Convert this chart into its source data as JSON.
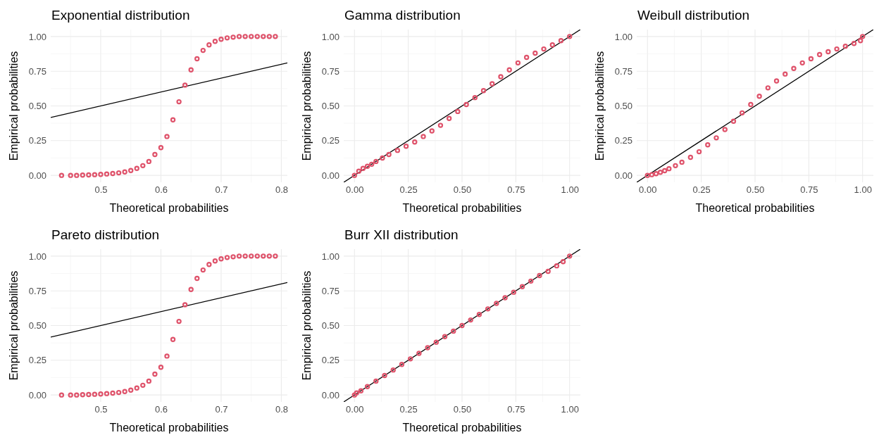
{
  "chart_data": [
    {
      "type": "scatter",
      "title": "Exponential distribution",
      "xlabel": "Theoretical probabilities",
      "ylabel": "Empirical probabilities",
      "xlim": [
        0.417,
        0.81
      ],
      "ylim": [
        -0.05,
        1.05
      ],
      "xticks": [
        0.5,
        0.6,
        0.7,
        0.8
      ],
      "yticks": [
        {
          "value": 0,
          "label": "0.00"
        },
        {
          "value": 0.25,
          "label": "0.25"
        },
        {
          "value": 0.5,
          "label": "0.50"
        },
        {
          "value": 0.75,
          "label": "0.75"
        },
        {
          "value": 1,
          "label": "1.00"
        }
      ],
      "grid": true,
      "series": [
        {
          "marker": "circle",
          "color": "#df536b",
          "x": [
            0.435,
            0.45,
            0.46,
            0.47,
            0.48,
            0.49,
            0.5,
            0.51,
            0.52,
            0.53,
            0.54,
            0.55,
            0.56,
            0.57,
            0.58,
            0.59,
            0.6,
            0.61,
            0.62,
            0.63,
            0.64,
            0.65,
            0.66,
            0.67,
            0.68,
            0.69,
            0.7,
            0.71,
            0.72,
            0.73,
            0.74,
            0.75,
            0.76,
            0.77,
            0.78,
            0.79
          ],
          "values": [
            0,
            0,
            0,
            0.002,
            0.003,
            0.005,
            0.007,
            0.01,
            0.013,
            0.018,
            0.025,
            0.035,
            0.05,
            0.07,
            0.1,
            0.15,
            0.2,
            0.28,
            0.4,
            0.53,
            0.65,
            0.76,
            0.84,
            0.9,
            0.94,
            0.965,
            0.98,
            0.99,
            0.995,
            1,
            1,
            1,
            1,
            1,
            1,
            1
          ]
        },
        {
          "type": "line",
          "color": "#000000",
          "x": [
            0.417,
            0.81
          ],
          "values": [
            0.417,
            0.81
          ]
        }
      ]
    },
    {
      "type": "scatter",
      "title": "Gamma distribution",
      "xlabel": "Theoretical probabilities",
      "ylabel": "Empirical probabilities",
      "xlim": [
        -0.05,
        1.05
      ],
      "ylim": [
        -0.05,
        1.05
      ],
      "xticks": [
        {
          "value": 0,
          "label": "0.00"
        },
        {
          "value": 0.25,
          "label": "0.25"
        },
        {
          "value": 0.5,
          "label": "0.50"
        },
        {
          "value": 0.75,
          "label": "0.75"
        },
        {
          "value": 1,
          "label": "1.00"
        }
      ],
      "yticks": [
        {
          "value": 0,
          "label": "0.00"
        },
        {
          "value": 0.25,
          "label": "0.25"
        },
        {
          "value": 0.5,
          "label": "0.50"
        },
        {
          "value": 0.75,
          "label": "0.75"
        },
        {
          "value": 1,
          "label": "1.00"
        }
      ],
      "grid": true,
      "series": [
        {
          "marker": "circle",
          "color": "#df536b",
          "x": [
            0,
            0.02,
            0.04,
            0.06,
            0.08,
            0.1,
            0.13,
            0.16,
            0.2,
            0.24,
            0.28,
            0.32,
            0.36,
            0.4,
            0.44,
            0.48,
            0.52,
            0.56,
            0.6,
            0.64,
            0.68,
            0.72,
            0.76,
            0.8,
            0.84,
            0.88,
            0.92,
            0.96,
            1
          ],
          "values": [
            0,
            0.03,
            0.05,
            0.065,
            0.08,
            0.1,
            0.125,
            0.15,
            0.18,
            0.21,
            0.24,
            0.28,
            0.32,
            0.36,
            0.41,
            0.46,
            0.51,
            0.56,
            0.61,
            0.66,
            0.71,
            0.76,
            0.81,
            0.85,
            0.88,
            0.91,
            0.94,
            0.97,
            1
          ]
        },
        {
          "type": "line",
          "color": "#000000",
          "x": [
            -0.05,
            1.05
          ],
          "values": [
            -0.05,
            1.05
          ]
        }
      ]
    },
    {
      "type": "scatter",
      "title": "Weibull distribution",
      "xlabel": "Theoretical probabilities",
      "ylabel": "Empirical probabilities",
      "xlim": [
        -0.05,
        1.05
      ],
      "ylim": [
        -0.05,
        1.05
      ],
      "xticks": [
        {
          "value": 0,
          "label": "0.00"
        },
        {
          "value": 0.25,
          "label": "0.25"
        },
        {
          "value": 0.5,
          "label": "0.50"
        },
        {
          "value": 0.75,
          "label": "0.75"
        },
        {
          "value": 1,
          "label": "1.00"
        }
      ],
      "yticks": [
        {
          "value": 0,
          "label": "0.00"
        },
        {
          "value": 0.25,
          "label": "0.25"
        },
        {
          "value": 0.5,
          "label": "0.50"
        },
        {
          "value": 0.75,
          "label": "0.75"
        },
        {
          "value": 1,
          "label": "1.00"
        }
      ],
      "grid": true,
      "series": [
        {
          "marker": "circle",
          "color": "#df536b",
          "x": [
            0,
            0.02,
            0.04,
            0.06,
            0.08,
            0.1,
            0.13,
            0.16,
            0.2,
            0.24,
            0.28,
            0.32,
            0.36,
            0.4,
            0.44,
            0.48,
            0.52,
            0.56,
            0.6,
            0.64,
            0.68,
            0.72,
            0.76,
            0.8,
            0.84,
            0.88,
            0.92,
            0.96,
            0.99,
            1
          ],
          "values": [
            0,
            0.005,
            0.012,
            0.022,
            0.034,
            0.048,
            0.07,
            0.095,
            0.13,
            0.17,
            0.22,
            0.27,
            0.33,
            0.39,
            0.45,
            0.51,
            0.57,
            0.63,
            0.68,
            0.73,
            0.77,
            0.81,
            0.84,
            0.87,
            0.89,
            0.91,
            0.93,
            0.95,
            0.97,
            1
          ]
        },
        {
          "type": "line",
          "color": "#000000",
          "x": [
            -0.05,
            1.05
          ],
          "values": [
            -0.05,
            1.05
          ]
        }
      ]
    },
    {
      "type": "scatter",
      "title": "Pareto distribution",
      "xlabel": "Theoretical probabilities",
      "ylabel": "Empirical probabilities",
      "xlim": [
        0.417,
        0.81
      ],
      "ylim": [
        -0.05,
        1.05
      ],
      "xticks": [
        0.5,
        0.6,
        0.7,
        0.8
      ],
      "yticks": [
        {
          "value": 0,
          "label": "0.00"
        },
        {
          "value": 0.25,
          "label": "0.25"
        },
        {
          "value": 0.5,
          "label": "0.50"
        },
        {
          "value": 0.75,
          "label": "0.75"
        },
        {
          "value": 1,
          "label": "1.00"
        }
      ],
      "grid": true,
      "series": [
        {
          "marker": "circle",
          "color": "#df536b",
          "x": [
            0.435,
            0.45,
            0.46,
            0.47,
            0.48,
            0.49,
            0.5,
            0.51,
            0.52,
            0.53,
            0.54,
            0.55,
            0.56,
            0.57,
            0.58,
            0.59,
            0.6,
            0.61,
            0.62,
            0.63,
            0.64,
            0.65,
            0.66,
            0.67,
            0.68,
            0.69,
            0.7,
            0.71,
            0.72,
            0.73,
            0.74,
            0.75,
            0.76,
            0.77,
            0.78,
            0.79
          ],
          "values": [
            0,
            0,
            0,
            0.002,
            0.003,
            0.005,
            0.007,
            0.01,
            0.013,
            0.018,
            0.025,
            0.035,
            0.05,
            0.07,
            0.1,
            0.15,
            0.2,
            0.28,
            0.4,
            0.53,
            0.65,
            0.76,
            0.84,
            0.9,
            0.94,
            0.965,
            0.98,
            0.99,
            0.995,
            1,
            1,
            1,
            1,
            1,
            1,
            1
          ]
        },
        {
          "type": "line",
          "color": "#000000",
          "x": [
            0.417,
            0.81
          ],
          "values": [
            0.417,
            0.81
          ]
        }
      ]
    },
    {
      "type": "scatter",
      "title": "Burr XII distribution",
      "xlabel": "Theoretical probabilities",
      "ylabel": "Empirical probabilities",
      "xlim": [
        -0.05,
        1.05
      ],
      "ylim": [
        -0.05,
        1.05
      ],
      "xticks": [
        {
          "value": 0,
          "label": "0.00"
        },
        {
          "value": 0.25,
          "label": "0.25"
        },
        {
          "value": 0.5,
          "label": "0.50"
        },
        {
          "value": 0.75,
          "label": "0.75"
        },
        {
          "value": 1,
          "label": "1.00"
        }
      ],
      "yticks": [
        {
          "value": 0,
          "label": "0.00"
        },
        {
          "value": 0.25,
          "label": "0.25"
        },
        {
          "value": 0.5,
          "label": "0.50"
        },
        {
          "value": 0.75,
          "label": "0.75"
        },
        {
          "value": 1,
          "label": "1.00"
        }
      ],
      "grid": true,
      "series": [
        {
          "marker": "circle",
          "color": "#df536b",
          "x": [
            0,
            0.01,
            0.03,
            0.06,
            0.1,
            0.14,
            0.18,
            0.22,
            0.26,
            0.3,
            0.34,
            0.38,
            0.42,
            0.46,
            0.5,
            0.54,
            0.58,
            0.62,
            0.66,
            0.7,
            0.74,
            0.78,
            0.82,
            0.86,
            0.9,
            0.94,
            0.97,
            1
          ],
          "values": [
            0,
            0.015,
            0.03,
            0.06,
            0.1,
            0.14,
            0.18,
            0.22,
            0.26,
            0.3,
            0.34,
            0.38,
            0.42,
            0.46,
            0.5,
            0.54,
            0.58,
            0.62,
            0.66,
            0.7,
            0.74,
            0.78,
            0.82,
            0.86,
            0.89,
            0.93,
            0.96,
            1
          ]
        },
        {
          "type": "line",
          "color": "#000000",
          "x": [
            -0.05,
            1.05
          ],
          "values": [
            -0.05,
            1.05
          ]
        }
      ]
    }
  ]
}
